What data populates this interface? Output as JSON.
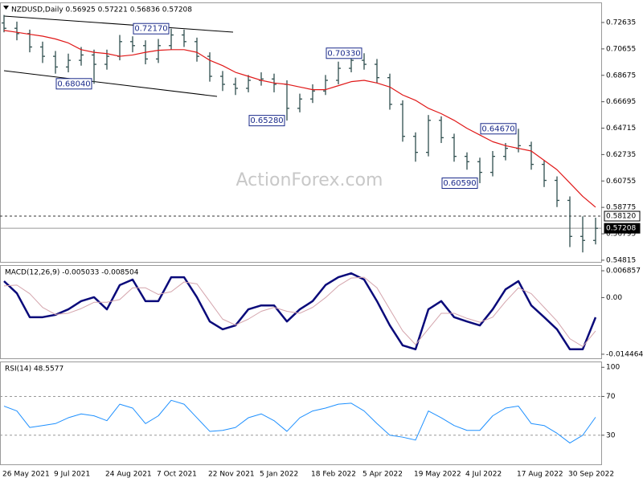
{
  "chart_data": [
    {
      "type": "ohlc",
      "title": "NZDUSD,Daily  0.56925 0.57221 0.56836 0.57208",
      "watermark": "ActionForex.com",
      "categories": [
        "26 May 2021",
        null,
        null,
        null,
        "9 Jul 2021",
        null,
        null,
        null,
        "24 Aug 2021",
        null,
        null,
        null,
        "7 Oct 2021",
        null,
        null,
        null,
        "22 Nov 2021",
        null,
        null,
        null,
        "5 Jan 2022",
        null,
        null,
        null,
        "18 Feb 2022",
        null,
        null,
        null,
        "5 Apr 2022",
        null,
        null,
        null,
        "19 May 2022",
        null,
        null,
        null,
        "4 Jul 2022",
        null,
        null,
        null,
        "17 Aug 2022",
        null,
        null,
        null,
        "30 Sep 2022",
        null,
        null
      ],
      "open": [
        0.726,
        0.722,
        0.718,
        0.708,
        0.701,
        0.693,
        0.698,
        0.702,
        0.695,
        0.701,
        0.712,
        0.709,
        0.699,
        0.709,
        0.717,
        0.712,
        0.701,
        0.686,
        0.68,
        0.677,
        0.683,
        0.684,
        0.68,
        0.662,
        0.669,
        0.675,
        0.683,
        0.692,
        0.698,
        0.695,
        0.685,
        0.665,
        0.641,
        0.629,
        0.653,
        0.64,
        0.626,
        0.622,
        0.614,
        0.626,
        0.632,
        0.634,
        0.62,
        0.608,
        0.593,
        0.566,
        0.563
      ],
      "high": [
        0.732,
        0.727,
        0.721,
        0.712,
        0.705,
        0.703,
        0.708,
        0.706,
        0.706,
        0.717,
        0.716,
        0.713,
        0.714,
        0.7217,
        0.721,
        0.715,
        0.704,
        0.69,
        0.685,
        0.687,
        0.689,
        0.688,
        0.683,
        0.673,
        0.68,
        0.687,
        0.697,
        0.702,
        0.7033,
        0.699,
        0.688,
        0.668,
        0.644,
        0.657,
        0.656,
        0.643,
        0.629,
        0.625,
        0.63,
        0.636,
        0.6467,
        0.637,
        0.623,
        0.611,
        0.596,
        0.581,
        0.58
      ],
      "low": [
        0.719,
        0.713,
        0.704,
        0.696,
        0.688,
        0.689,
        0.694,
        0.6804,
        0.691,
        0.698,
        0.704,
        0.695,
        0.696,
        0.706,
        0.708,
        0.697,
        0.682,
        0.675,
        0.672,
        0.674,
        0.679,
        0.674,
        0.6528,
        0.659,
        0.666,
        0.672,
        0.68,
        0.689,
        0.691,
        0.681,
        0.661,
        0.637,
        0.622,
        0.626,
        0.636,
        0.622,
        0.616,
        0.6059,
        0.611,
        0.623,
        0.629,
        0.616,
        0.603,
        0.588,
        0.558,
        0.554,
        0.56
      ],
      "close": [
        0.722,
        0.718,
        0.708,
        0.701,
        0.693,
        0.698,
        0.702,
        0.695,
        0.701,
        0.712,
        0.709,
        0.699,
        0.709,
        0.717,
        0.712,
        0.701,
        0.686,
        0.68,
        0.677,
        0.683,
        0.684,
        0.68,
        0.662,
        0.669,
        0.675,
        0.683,
        0.692,
        0.698,
        0.695,
        0.685,
        0.665,
        0.641,
        0.629,
        0.653,
        0.64,
        0.626,
        0.622,
        0.614,
        0.626,
        0.632,
        0.634,
        0.62,
        0.608,
        0.593,
        0.566,
        0.563,
        0.57208
      ],
      "color": "#2f4f4f",
      "ma": {
        "color": "#e01818",
        "values": [
          0.7204,
          0.719,
          0.7175,
          0.7161,
          0.714,
          0.711,
          0.706,
          0.704,
          0.703,
          0.701,
          0.702,
          0.704,
          0.7055,
          0.706,
          0.706,
          0.704,
          0.698,
          0.694,
          0.689,
          0.686,
          0.683,
          0.681,
          0.68,
          0.678,
          0.676,
          0.676,
          0.679,
          0.682,
          0.683,
          0.681,
          0.678,
          0.672,
          0.668,
          0.662,
          0.658,
          0.653,
          0.647,
          0.642,
          0.637,
          0.634,
          0.632,
          0.63,
          0.623,
          0.616,
          0.606,
          0.596,
          0.5879
        ]
      },
      "annotations": [
        {
          "value": 0.7217,
          "label": "0.72170"
        },
        {
          "value": 0.6804,
          "label": "0.68040"
        },
        {
          "value": 0.7033,
          "label": "0.70330"
        },
        {
          "value": 0.6528,
          "label": "0.65280"
        },
        {
          "value": 0.6467,
          "label": "0.64670"
        },
        {
          "value": 0.6059,
          "label": "0.60590"
        }
      ],
      "levels": [
        {
          "value": 0.5812,
          "label": "0.58120",
          "style": "dashed"
        },
        {
          "value": 0.57208,
          "style": "solid"
        }
      ],
      "ylim": [
        0.5469,
        0.7414
      ],
      "yticks": [
        0.72635,
        0.70655,
        0.68675,
        0.66695,
        0.64715,
        0.62735,
        0.60755,
        0.58775,
        0.56795,
        0.54815
      ]
    },
    {
      "type": "line",
      "title": "MACD(12,26,9) -0.005033 -0.008504",
      "series": [
        {
          "color": "#0a0a7a",
          "width": 2.5,
          "values": [
            0.0042,
            0.0011,
            -0.005,
            -0.005,
            -0.0044,
            -0.003,
            -0.0009,
            0.0001,
            -0.003,
            0.0032,
            0.0046,
            -0.0009,
            -0.0009,
            0.0052,
            0.0052,
            0.0001,
            -0.0061,
            -0.0081,
            -0.0071,
            -0.003,
            -0.002,
            -0.002,
            -0.0061,
            -0.003,
            -0.0009,
            0.0032,
            0.0052,
            0.0062,
            0.0046,
            -0.0009,
            -0.0071,
            -0.0122,
            -0.0132,
            -0.003,
            -0.0009,
            -0.005,
            -0.0061,
            -0.0071,
            -0.003,
            0.0021,
            0.0042,
            -0.002,
            -0.005,
            -0.0081,
            -0.0132,
            -0.0132,
            -0.005033
          ]
        },
        {
          "color": "#d4a4ac",
          "width": 1,
          "values": [
            0.003,
            0.0032,
            0.001,
            -0.0025,
            -0.0043,
            -0.004,
            -0.0028,
            -0.0012,
            -0.0012,
            -0.0005,
            0.0025,
            0.0025,
            0.0008,
            0.0015,
            0.004,
            0.0035,
            -0.001,
            -0.0055,
            -0.007,
            -0.0055,
            -0.0035,
            -0.0025,
            -0.0035,
            -0.004,
            -0.0025,
            0,
            0.003,
            0.005,
            0.0052,
            0.0025,
            -0.003,
            -0.0085,
            -0.012,
            -0.008,
            -0.004,
            -0.004,
            -0.0053,
            -0.0063,
            -0.005,
            -0.001,
            0.0025,
            0.001,
            -0.0025,
            -0.006,
            -0.0105,
            -0.0125,
            -0.008504
          ]
        }
      ],
      "ylim": [
        -0.0155,
        0.0083
      ],
      "yticks": [
        0.006857,
        {
          "value": 0,
          "label": "0.00"
        },
        -0.014464
      ]
    },
    {
      "type": "line",
      "title": "RSI(14) 48.5577",
      "series": [
        {
          "color": "#1e90ff",
          "width": 1,
          "values": [
            60,
            55,
            38,
            40,
            42,
            48,
            52,
            50,
            45,
            62,
            58,
            42,
            50,
            66,
            62,
            48,
            34,
            35,
            38,
            48,
            52,
            45,
            34,
            48,
            55,
            58,
            62,
            63,
            55,
            42,
            30,
            28,
            25,
            55,
            48,
            40,
            35,
            35,
            50,
            58,
            60,
            42,
            40,
            32,
            22,
            30,
            48.5577
          ]
        }
      ],
      "levels": [
        70,
        30
      ],
      "ylim": [
        0,
        106
      ],
      "yticks": [
        100,
        70,
        30
      ]
    }
  ]
}
